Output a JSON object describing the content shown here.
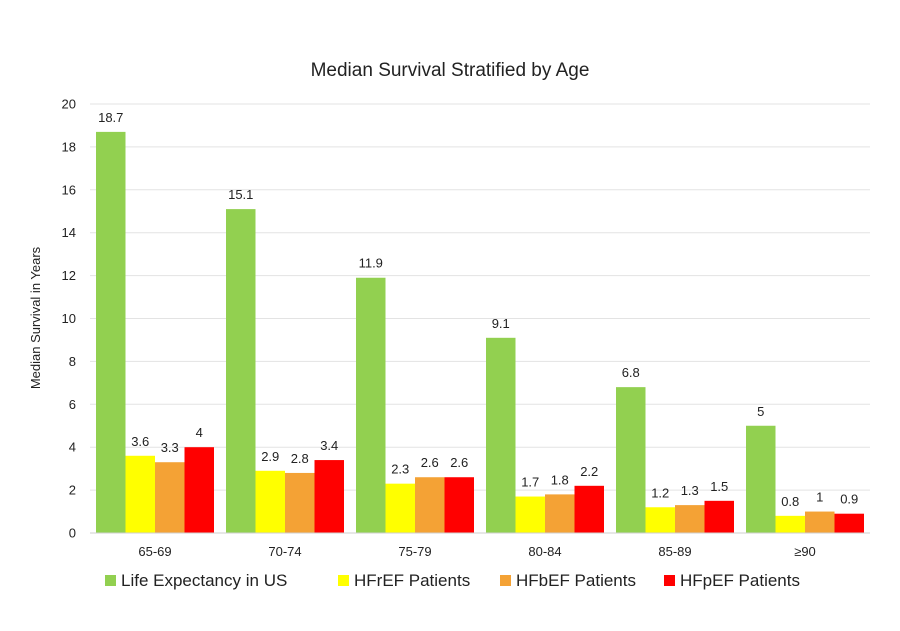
{
  "chart_data": {
    "type": "bar",
    "title": "Median Survival Stratified by Age",
    "ylabel": "Median Survival in Years",
    "xlabel": "",
    "ylim": [
      0,
      20
    ],
    "yticks": [
      "0",
      "2",
      "4",
      "6",
      "8",
      "10",
      "12",
      "14",
      "16",
      "18",
      "20"
    ],
    "grid": true,
    "legend_position": "bottom",
    "categories": [
      "65-69",
      "70-74",
      "75-79",
      "80-84",
      "85-89",
      "≥90"
    ],
    "series": [
      {
        "name": "Life Expectancy in US",
        "color": "#92d050",
        "values": [
          18.7,
          15.1,
          11.9,
          9.1,
          6.8,
          5
        ],
        "labels": [
          "18.7",
          "15.1",
          "11.9",
          "9.1",
          "6.8",
          "5"
        ]
      },
      {
        "name": "HFrEF Patients",
        "color": "#ffff00",
        "values": [
          3.6,
          2.9,
          2.3,
          1.7,
          1.2,
          0.8
        ],
        "labels": [
          "3.6",
          "2.9",
          "2.3",
          "1.7",
          "1.2",
          "0.8"
        ]
      },
      {
        "name": "HFbEF Patients",
        "color": "#f4a235",
        "values": [
          3.3,
          2.8,
          2.6,
          1.8,
          1.3,
          1
        ],
        "labels": [
          "3.3",
          "2.8",
          "2.6",
          "1.8",
          "1.3",
          "1"
        ]
      },
      {
        "name": "HFpEF Patients",
        "color": "#ff0000",
        "values": [
          4,
          3.4,
          2.6,
          2.2,
          1.5,
          0.9
        ],
        "labels": [
          "4",
          "3.4",
          "2.6",
          "2.2",
          "1.5",
          "0.9"
        ]
      }
    ]
  }
}
